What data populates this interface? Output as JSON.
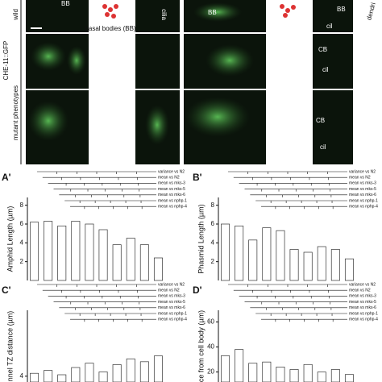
{
  "micrographs": {
    "row_labels": [
      "wild",
      "CHE-11::GFP",
      "mutant phenotypes"
    ],
    "annotations": [
      "BB",
      "basal bodies (BB)",
      "cilia",
      "BB",
      "BB",
      "cil",
      "CB",
      "cil",
      "CB",
      "cil",
      "dendri"
    ]
  },
  "chart_data": [
    {
      "type": "bar",
      "title": "A'",
      "ylabel": "Amphid Length (µm)",
      "categories": [
        null,
        null,
        null,
        null,
        null,
        null,
        null,
        null,
        null,
        null
      ],
      "values": [
        6.2,
        6.3,
        5.8,
        6.3,
        6.0,
        5.4,
        3.8,
        4.5,
        3.8,
        2.4
      ],
      "color": "#ffffff",
      "ylim": [
        0,
        9
      ],
      "yticks": [
        2,
        4,
        6,
        8
      ],
      "annotations": [
        "variance vs N2",
        "mean vs N2",
        "mean vs mks-3",
        "mean vs mks-5",
        "mean vs mks-6",
        "mean vs nphp-1",
        "mean vs nphp-4"
      ]
    },
    {
      "type": "bar",
      "title": "B'",
      "ylabel": "Phasmid Length (µm)",
      "categories": [
        null,
        null,
        null,
        null,
        null,
        null,
        null,
        null,
        null,
        null
      ],
      "values": [
        6.0,
        5.8,
        4.3,
        5.6,
        5.3,
        3.3,
        3.0,
        3.6,
        3.3,
        2.3
      ],
      "color": "#ffffff",
      "ylim": [
        0,
        9
      ],
      "yticks": [
        2,
        4,
        6,
        8
      ],
      "annotations": [
        "variance vs N2",
        "mean vs N2",
        "mean vs mks-3",
        "mean vs mks-5",
        "mean vs mks-6",
        "mean vs nphp-1",
        "mean vs nphp-4"
      ]
    },
    {
      "type": "bar",
      "title": "C'",
      "ylabel": "nnel TZ distance (µm)",
      "categories": [
        null,
        null,
        null,
        null,
        null,
        null,
        null,
        null,
        null,
        null
      ],
      "values": [
        4.2,
        4.4,
        4.1,
        4.6,
        4.9,
        4.3,
        4.8,
        5.2,
        5.0,
        5.4
      ],
      "color": "#ffffff",
      "ylim": [
        3.6,
        12
      ],
      "yticks": [
        4
      ],
      "annotations": [
        "variance vs N2",
        "mean vs N2",
        "mean vs mks-3",
        "mean vs mks-5",
        "mean vs mks-6",
        "mean vs nphp-1",
        "mean vs nphp-4"
      ]
    },
    {
      "type": "bar",
      "title": "D'",
      "ylabel": "ce from cell body (µm)",
      "categories": [
        null,
        null,
        null,
        null,
        null,
        null,
        null,
        null,
        null,
        null
      ],
      "values": [
        33,
        38,
        27,
        28,
        24,
        22,
        26,
        20,
        22,
        18
      ],
      "color": "#ffffff",
      "ylim": [
        12,
        70
      ],
      "yticks": [
        20,
        40,
        60
      ],
      "annotations": [
        "variance vs N2",
        "mean vs N2",
        "mean vs mks-3",
        "mean vs mks-5",
        "mean vs mks-6",
        "mean vs nphp-1",
        "mean vs nphp-4"
      ]
    }
  ]
}
